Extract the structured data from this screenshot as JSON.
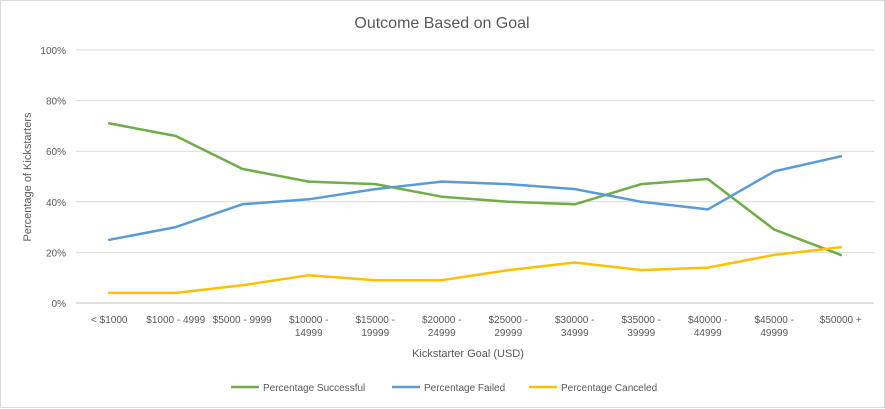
{
  "chart_data": {
    "type": "line",
    "title": "Outcome Based on Goal",
    "xlabel": "Kickstarter Goal (USD)",
    "ylabel": "Percentage of Kickstarters",
    "ylim": [
      0,
      100
    ],
    "y_ticks": [
      "0%",
      "20%",
      "40%",
      "60%",
      "80%",
      "100%"
    ],
    "grid": true,
    "legend_position": "bottom",
    "categories": [
      [
        "< $1000"
      ],
      [
        "$1000 - 4999"
      ],
      [
        "$5000 - 9999"
      ],
      [
        "$10000 -",
        "14999"
      ],
      [
        "$15000 -",
        "19999"
      ],
      [
        "$20000 -",
        "24999"
      ],
      [
        "$25000 -",
        "29999"
      ],
      [
        "$30000 -",
        "34999"
      ],
      [
        "$35000 -",
        "39999"
      ],
      [
        "$40000 -",
        "44999"
      ],
      [
        "$45000 -",
        "49999"
      ],
      [
        "$50000 +"
      ]
    ],
    "series": [
      {
        "name": "Percentage Successful",
        "color": "#70ad47",
        "values": [
          71,
          66,
          53,
          48,
          47,
          42,
          40,
          39,
          47,
          49,
          29,
          19
        ]
      },
      {
        "name": "Percentage Failed",
        "color": "#5b9bd5",
        "values": [
          25,
          30,
          39,
          41,
          45,
          48,
          47,
          45,
          40,
          37,
          52,
          58
        ]
      },
      {
        "name": "Percentage Canceled",
        "color": "#ffc000",
        "values": [
          4,
          4,
          7,
          11,
          9,
          9,
          13,
          16,
          13,
          14,
          19,
          22
        ]
      }
    ]
  }
}
